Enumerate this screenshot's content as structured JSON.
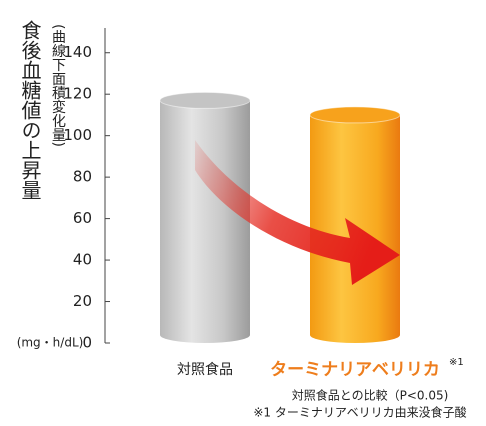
{
  "chart_data": {
    "type": "bar",
    "title": "食後血糖値の上昇量",
    "subtitle": "(曲線下面積変化量)",
    "unit_label": "(mg・h/dL)",
    "categories": [
      "対照食品",
      "ターミナリアベリリカ"
    ],
    "category_note": "※1",
    "values": [
      117,
      110
    ],
    "colors": [
      "#c4c4c4",
      "#f7a21c"
    ],
    "ylim": [
      0,
      150
    ],
    "yticks": [
      0,
      20,
      40,
      60,
      80,
      100,
      120,
      140
    ],
    "grid": false,
    "notes": [
      "対照食品との比較（P<0.05)",
      "※1 ターミナリアベリリカ由来没食子酸"
    ]
  }
}
